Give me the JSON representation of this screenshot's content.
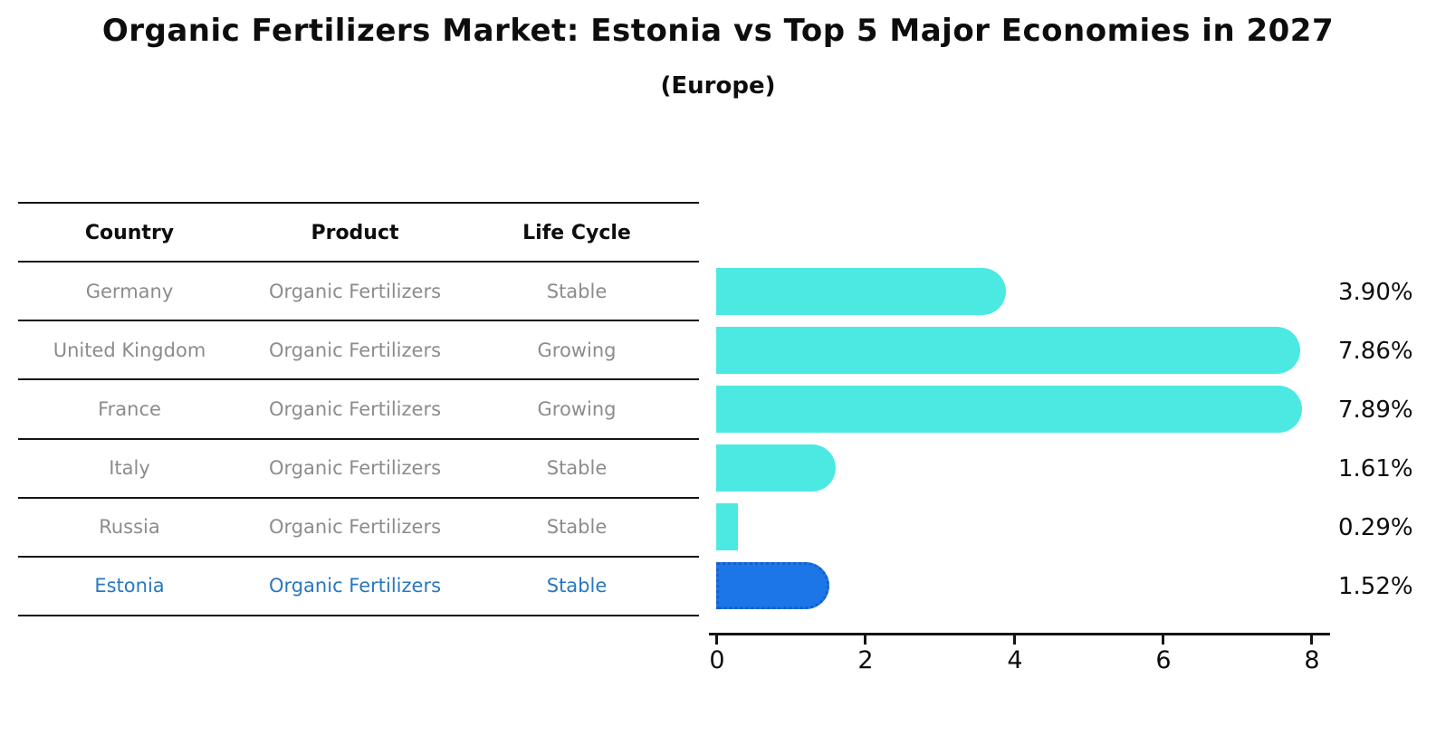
{
  "title": "Organic Fertilizers Market: Estonia vs Top 5 Major Economies in 2027",
  "subtitle": "(Europe)",
  "table": {
    "headers": [
      "Country",
      "Product",
      "Life Cycle"
    ],
    "rows": [
      {
        "country": "Germany",
        "product": "Organic Fertilizers",
        "life_cycle": "Stable",
        "highlighted": false
      },
      {
        "country": "United Kingdom",
        "product": "Organic Fertilizers",
        "life_cycle": "Growing",
        "highlighted": false
      },
      {
        "country": "France",
        "product": "Organic Fertilizers",
        "life_cycle": "Growing",
        "highlighted": false
      },
      {
        "country": "Italy",
        "product": "Organic Fertilizers",
        "life_cycle": "Stable",
        "highlighted": false
      },
      {
        "country": "Russia",
        "product": "Organic Fertilizers",
        "life_cycle": "Stable",
        "highlighted": false
      },
      {
        "country": "Estonia",
        "product": "Organic Fertilizers",
        "life_cycle": "Stable",
        "highlighted": true
      }
    ]
  },
  "chart_data": {
    "type": "bar",
    "orientation": "horizontal",
    "title": "Organic Fertilizers Market: Estonia vs Top 5 Major Economies in 2027 (Europe)",
    "categories": [
      "Germany",
      "United Kingdom",
      "France",
      "Italy",
      "Russia",
      "Estonia"
    ],
    "values": [
      3.9,
      7.86,
      7.89,
      1.61,
      0.29,
      1.52
    ],
    "value_labels": [
      "3.90%",
      "7.86%",
      "7.89%",
      "1.61%",
      "0.29%",
      "1.52%"
    ],
    "unit": "%",
    "xlabel": "",
    "ylabel": "",
    "xticks": [
      0,
      2,
      4,
      6,
      8
    ],
    "xtick_labels": [
      "0",
      "2",
      "4",
      "6",
      "8"
    ],
    "xlim": [
      0,
      8.3
    ],
    "grid": false,
    "legend": null,
    "highlight_index": 5,
    "bar_color": "#4CE9E3",
    "highlight_color": "#1D76E8"
  },
  "colors": {
    "background": "#FFFFFF",
    "title_text": "#0D0D0D",
    "table_header_text": "#0D0D0D",
    "table_cell_text": "#8C8C8C",
    "highlight_text": "#2878C0",
    "rule": "#141414",
    "bar": "#4CE9E3",
    "highlight_bar": "#1D76E8",
    "highlight_bar_border": "#1560C8",
    "value_label_text": "#0D0D0D"
  }
}
